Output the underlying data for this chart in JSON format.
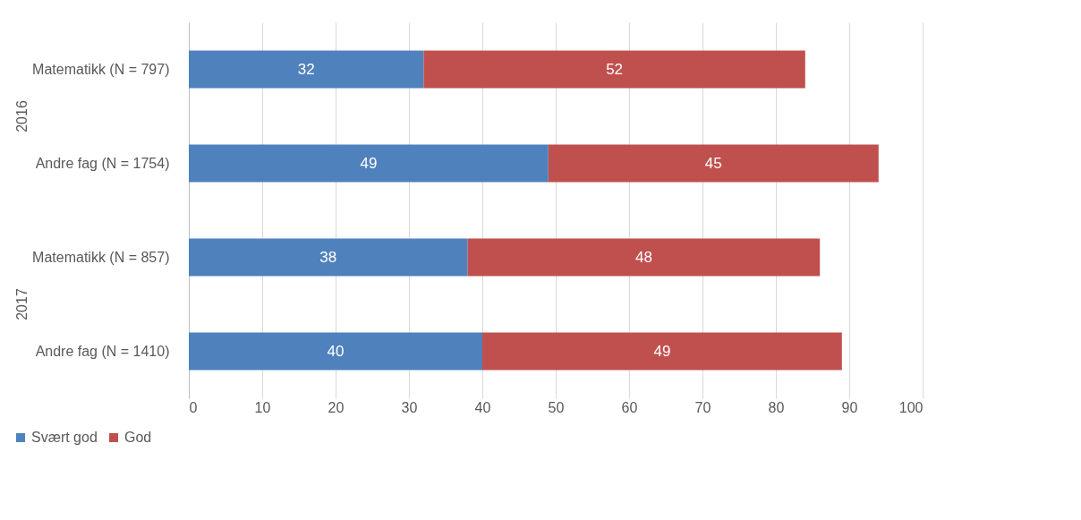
{
  "chart_data": {
    "type": "bar",
    "orientation": "horizontal",
    "stacked": true,
    "categories": [
      "Matematikk (N = 797)",
      "Andre fag (N = 1754)",
      "Matematikk (N = 857)",
      "Andre fag (N = 1410)"
    ],
    "series": [
      {
        "name": "Svært god",
        "color": "#4f81bd",
        "values": [
          32,
          49,
          38,
          40
        ]
      },
      {
        "name": "God",
        "color": "#c0504d",
        "values": [
          52,
          45,
          48,
          49
        ]
      }
    ],
    "xlim": [
      0,
      100
    ],
    "xticks": [
      0,
      10,
      20,
      30,
      40,
      50,
      60,
      70,
      80,
      90,
      100
    ],
    "grid": "x",
    "legend": "bottom",
    "data_labels": true,
    "annotations": [
      "2016",
      "2017"
    ]
  }
}
